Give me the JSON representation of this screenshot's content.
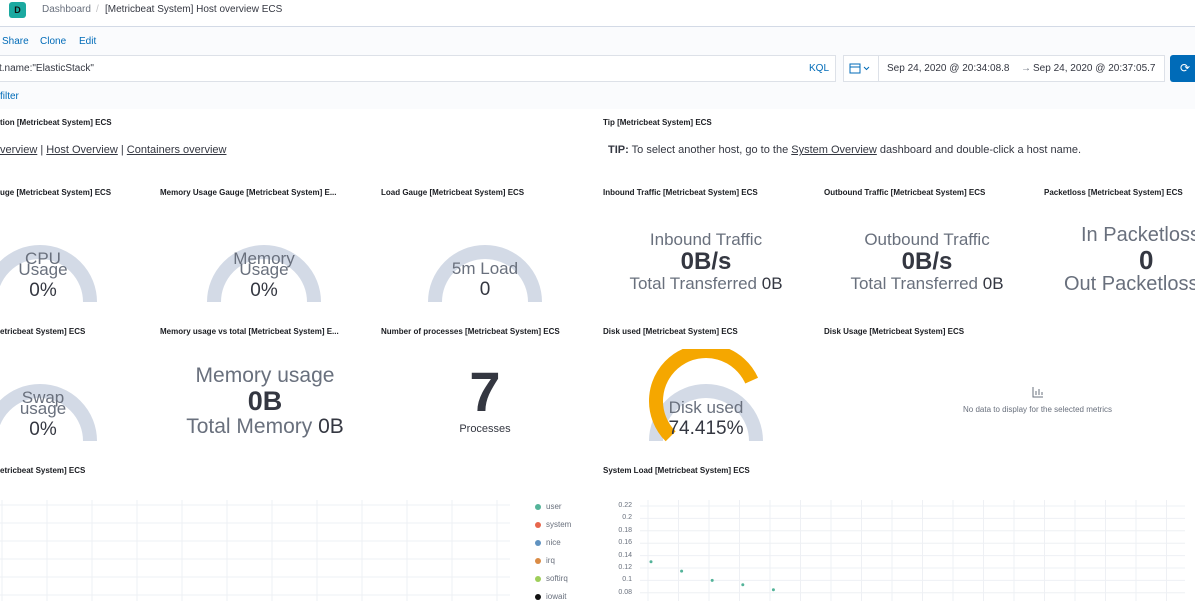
{
  "header": {
    "logo_letter": "D",
    "breadcrumb_root": "Dashboard",
    "breadcrumb_separator": "/",
    "breadcrumb_current": "[Metricbeat System] Host overview ECS"
  },
  "actions": {
    "share": "Share",
    "clone": "Clone",
    "edit": "Edit"
  },
  "query": {
    "text": "t.name:\"ElasticStack\"",
    "language": "KQL",
    "date_start": "Sep 24, 2020 @ 20:34:08.8",
    "date_arrow": "→",
    "date_end": "Sep 24, 2020 @ 20:37:05.7",
    "refresh_icon": "refresh-icon",
    "calendar_icon": "calendar-icon"
  },
  "filter": {
    "add_filter": "filter"
  },
  "panels": {
    "navigation": {
      "title": "tion [Metricbeat System] ECS",
      "link1": "verview",
      "sep1": "|",
      "link2": "Host Overview",
      "sep2": "|",
      "link3": "Containers overview"
    },
    "tip": {
      "title": "Tip [Metricbeat System] ECS",
      "bold": "TIP:",
      "text_before": " To select another host, go to the ",
      "link": "System Overview",
      "text_after": " dashboard and double-click a host name."
    },
    "cpu_gauge": {
      "title": "uge [Metricbeat System] ECS",
      "label1": "CPU",
      "label2": "Usage",
      "value": "0%",
      "fraction": 0
    },
    "memory_gauge": {
      "title": "Memory Usage Gauge [Metricbeat System] E...",
      "label1": "Memory",
      "label2": "Usage",
      "value": "0%",
      "fraction": 0
    },
    "load_gauge": {
      "title": "Load Gauge [Metricbeat System] ECS",
      "label": "5m Load",
      "value": "0",
      "fraction": 0
    },
    "inbound": {
      "title": "Inbound Traffic [Metricbeat System] ECS",
      "label": "Inbound Traffic",
      "value": "0B/s",
      "sub_label": "Total Transferred",
      "sub_value": "0B"
    },
    "outbound": {
      "title": "Outbound Traffic [Metricbeat System] ECS",
      "label": "Outbound Traffic",
      "value": "0B/s",
      "sub_label": "Total Transferred",
      "sub_value": "0B"
    },
    "packetloss": {
      "title": "Packetloss [Metricbeat System] ECS",
      "label": "In Packetloss",
      "value": "0",
      "sub_label": "Out Packetloss"
    },
    "swap_gauge": {
      "title": "etricbeat System] ECS",
      "label1": "Swap",
      "label2": "usage",
      "value": "0%",
      "fraction": 0
    },
    "memory_total": {
      "title": "Memory usage vs total [Metricbeat System] E...",
      "label": "Memory usage",
      "value": "0B",
      "sub_label": "Total Memory",
      "sub_value": "0B"
    },
    "processes": {
      "title": "Number of processes [Metricbeat System] ECS",
      "value": "7",
      "label": "Processes"
    },
    "disk_used": {
      "title": "Disk used [Metricbeat System] ECS",
      "label": "Disk used",
      "value": "74.415%",
      "fraction": 0.74415
    },
    "disk_usage": {
      "title": "Disk Usage [Metricbeat System] ECS",
      "empty_icon": "chart-icon",
      "empty_text": "No data to display for the selected metrics"
    },
    "cpu_chart": {
      "title": "etricbeat System] ECS"
    },
    "system_load": {
      "title": "System Load [Metricbeat System] ECS"
    }
  },
  "cpu_legend": [
    {
      "name": "user",
      "color": "#54b399"
    },
    {
      "name": "system",
      "color": "#e7664c"
    },
    {
      "name": "nice",
      "color": "#6092c0"
    },
    {
      "name": "irq",
      "color": "#da8b45"
    },
    {
      "name": "softirq",
      "color": "#9ece5a"
    },
    {
      "name": "iowait",
      "color": "#111111"
    }
  ],
  "colors": {
    "accent": "#006bb8",
    "gauge_track": "#d3dae6",
    "gauge_fill": "#f5a700",
    "logo": "#1ba9a0"
  },
  "chart_data": {
    "type": "scatter",
    "title": "System Load [Metricbeat System] ECS",
    "ylim": [
      0.08,
      0.22
    ],
    "y_ticks": [
      "0.22",
      "0.2",
      "0.18",
      "0.16",
      "0.14",
      "0.12",
      "0.1",
      "0.08"
    ],
    "series": [
      {
        "values": [
          0.13,
          0.115,
          0.1,
          0.093,
          0.085
        ]
      }
    ]
  }
}
